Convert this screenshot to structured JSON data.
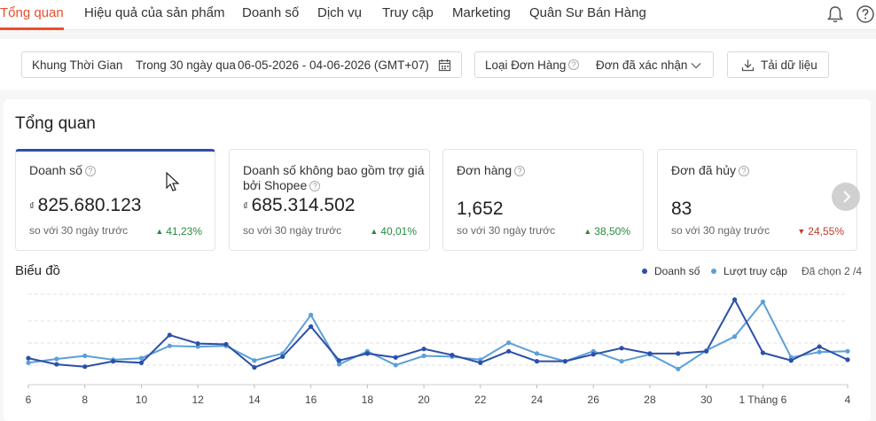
{
  "nav": {
    "tabs": [
      {
        "label": "Tổng quan",
        "active": true
      },
      {
        "label": "Hiệu quả của sản phẩm"
      },
      {
        "label": "Doanh số"
      },
      {
        "label": "Dịch vụ"
      },
      {
        "label": "Truy cập"
      },
      {
        "label": "Marketing"
      },
      {
        "label": "Quân Sư Bán Hàng"
      }
    ],
    "icons": [
      "bell-icon",
      "help-icon"
    ]
  },
  "filters": {
    "period_label": "Khung Thời Gian",
    "period_value": "Trong 30 ngày qua",
    "date_range": "06-05-2026 - 04-06-2026 (GMT+07)",
    "order_type_label": "Loại Đơn Hàng",
    "order_type_value": "Đơn đã xác nhận",
    "download_label": "Tải dữ liệu"
  },
  "overview": {
    "title": "Tổng quan",
    "cards": [
      {
        "label": "Doanh số",
        "currency": "₫",
        "value": "825.680.123",
        "compare": "so với 30 ngày trước",
        "change": "41,23%",
        "trend": "up"
      },
      {
        "label": "Doanh số không bao gồm trợ giá bởi Shopee",
        "currency": "₫",
        "value": "685.314.502",
        "compare": "so với 30 ngày trước",
        "change": "40,01%",
        "trend": "up"
      },
      {
        "label": "Đơn hàng",
        "currency": "",
        "value": "1,652",
        "compare": "so với 30 ngày trước",
        "change": "38,50%",
        "trend": "up"
      },
      {
        "label": "Đơn đã hủy",
        "currency": "",
        "value": "83",
        "compare": "so với 30 ngày trước",
        "change": "24,55%",
        "trend": "down"
      }
    ]
  },
  "chart": {
    "title": "Biểu đồ",
    "selected_text": "Đã chọn 2 /4",
    "colors": {
      "series1": "#2c4fa8",
      "series2": "#5b9fd8"
    }
  },
  "chart_data": {
    "type": "line",
    "x": [
      "6",
      "7",
      "8",
      "9",
      "10",
      "11",
      "12",
      "13",
      "14",
      "15",
      "16",
      "17",
      "18",
      "19",
      "20",
      "21",
      "22",
      "23",
      "24",
      "25",
      "26",
      "27",
      "28",
      "29",
      "30",
      "31",
      "1 Tháng 6",
      "2",
      "3",
      "4"
    ],
    "x_tick_labels": [
      "6",
      "8",
      "10",
      "12",
      "14",
      "16",
      "18",
      "20",
      "22",
      "24",
      "26",
      "28",
      "30",
      "1 Tháng 6",
      "4"
    ],
    "series": [
      {
        "name": "Doanh số",
        "values": [
          0.24,
          0.16,
          0.13,
          0.2,
          0.18,
          0.54,
          0.43,
          0.42,
          0.12,
          0.26,
          0.65,
          0.21,
          0.3,
          0.25,
          0.36,
          0.28,
          0.18,
          0.33,
          0.2,
          0.2,
          0.29,
          0.37,
          0.3,
          0.3,
          0.33,
          1.0,
          0.31,
          0.21,
          0.39,
          0.22
        ]
      },
      {
        "name": "Lượt truy cập",
        "values": [
          0.18,
          0.23,
          0.27,
          0.22,
          0.24,
          0.4,
          0.39,
          0.4,
          0.21,
          0.3,
          0.8,
          0.16,
          0.33,
          0.15,
          0.27,
          0.26,
          0.22,
          0.44,
          0.3,
          0.2,
          0.33,
          0.2,
          0.29,
          0.1,
          0.34,
          0.52,
          0.97,
          0.25,
          0.32,
          0.33
        ]
      }
    ]
  }
}
